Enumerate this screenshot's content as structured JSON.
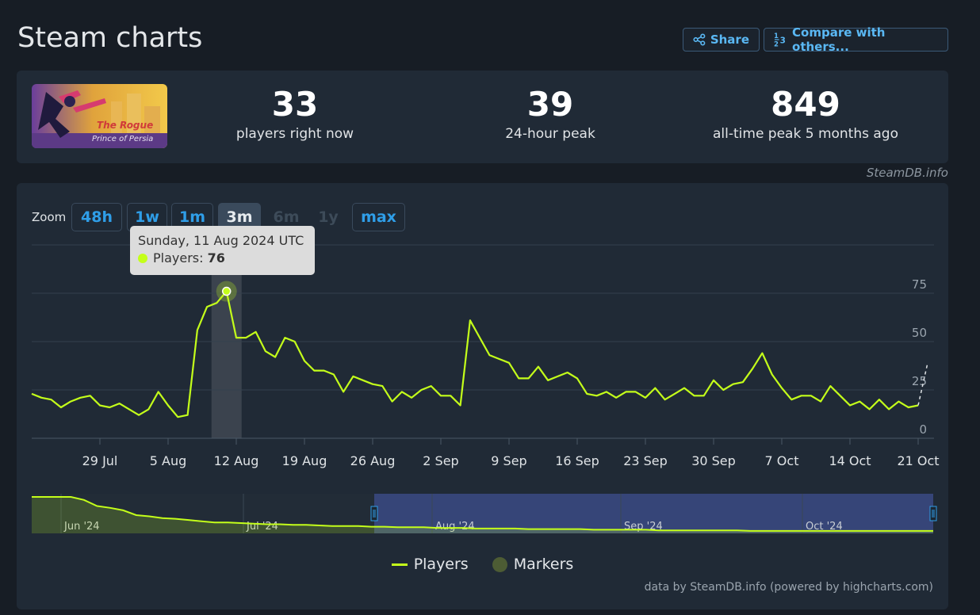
{
  "header": {
    "title": "Steam charts",
    "share_label": "Share",
    "compare_label": "Compare with others..."
  },
  "game": {
    "image_text_line1": "The Rogue",
    "image_text_line2": "Prince of Persia"
  },
  "stats": [
    {
      "value": "33",
      "label": "players right now"
    },
    {
      "value": "39",
      "label": "24-hour peak"
    },
    {
      "value": "849",
      "label": "all-time peak 5 months ago"
    }
  ],
  "attribution": "SteamDB.info",
  "zoom": {
    "label": "Zoom",
    "options": [
      "48h",
      "1w",
      "1m",
      "3m",
      "6m",
      "1y",
      "max"
    ],
    "active": "3m",
    "disabled": [
      "6m",
      "1y"
    ]
  },
  "tooltip": {
    "date": "Sunday, 11 Aug 2024 UTC",
    "series_label": "Players:",
    "value": "76"
  },
  "legend": {
    "players": "Players",
    "markers": "Markers"
  },
  "credits": "data by SteamDB.info (powered by highcharts.com)",
  "colors": {
    "series": "#c4ff1a",
    "accent": "#2f9ee8",
    "background": "#171d25",
    "panel": "#202a36"
  },
  "chart_data": {
    "type": "line",
    "title": "",
    "xlabel": "",
    "ylabel": "",
    "ylim": [
      0,
      100
    ],
    "xlim": [
      "2024-07-22",
      "2024-10-21"
    ],
    "yticks": [
      0,
      25,
      50,
      75
    ],
    "xticks": [
      {
        "date": "2024-07-29",
        "label": "29 Jul"
      },
      {
        "date": "2024-08-05",
        "label": "5 Aug"
      },
      {
        "date": "2024-08-12",
        "label": "12 Aug"
      },
      {
        "date": "2024-08-19",
        "label": "19 Aug"
      },
      {
        "date": "2024-08-26",
        "label": "26 Aug"
      },
      {
        "date": "2024-09-02",
        "label": "2 Sep"
      },
      {
        "date": "2024-09-09",
        "label": "9 Sep"
      },
      {
        "date": "2024-09-16",
        "label": "16 Sep"
      },
      {
        "date": "2024-09-23",
        "label": "23 Sep"
      },
      {
        "date": "2024-09-30",
        "label": "30 Sep"
      },
      {
        "date": "2024-10-07",
        "label": "7 Oct"
      },
      {
        "date": "2024-10-14",
        "label": "14 Oct"
      },
      {
        "date": "2024-10-21",
        "label": "21 Oct"
      }
    ],
    "highlight": {
      "date": "2024-08-11",
      "value": 76
    },
    "series": [
      {
        "name": "Players",
        "points": [
          [
            "2024-07-22",
            23
          ],
          [
            "2024-07-23",
            21
          ],
          [
            "2024-07-24",
            20
          ],
          [
            "2024-07-25",
            16
          ],
          [
            "2024-07-26",
            19
          ],
          [
            "2024-07-27",
            21
          ],
          [
            "2024-07-28",
            22
          ],
          [
            "2024-07-29",
            17
          ],
          [
            "2024-07-30",
            16
          ],
          [
            "2024-07-31",
            18
          ],
          [
            "2024-08-01",
            15
          ],
          [
            "2024-08-02",
            12
          ],
          [
            "2024-08-03",
            15
          ],
          [
            "2024-08-04",
            24
          ],
          [
            "2024-08-05",
            17
          ],
          [
            "2024-08-06",
            11
          ],
          [
            "2024-08-07",
            12
          ],
          [
            "2024-08-08",
            56
          ],
          [
            "2024-08-09",
            68
          ],
          [
            "2024-08-10",
            70
          ],
          [
            "2024-08-11",
            76
          ],
          [
            "2024-08-12",
            52
          ],
          [
            "2024-08-13",
            52
          ],
          [
            "2024-08-14",
            55
          ],
          [
            "2024-08-15",
            45
          ],
          [
            "2024-08-16",
            42
          ],
          [
            "2024-08-17",
            52
          ],
          [
            "2024-08-18",
            50
          ],
          [
            "2024-08-19",
            40
          ],
          [
            "2024-08-20",
            35
          ],
          [
            "2024-08-21",
            35
          ],
          [
            "2024-08-22",
            33
          ],
          [
            "2024-08-23",
            24
          ],
          [
            "2024-08-24",
            32
          ],
          [
            "2024-08-25",
            30
          ],
          [
            "2024-08-26",
            28
          ],
          [
            "2024-08-27",
            27
          ],
          [
            "2024-08-28",
            19
          ],
          [
            "2024-08-29",
            24
          ],
          [
            "2024-08-30",
            21
          ],
          [
            "2024-08-31",
            25
          ],
          [
            "2024-09-01",
            27
          ],
          [
            "2024-09-02",
            22
          ],
          [
            "2024-09-03",
            22
          ],
          [
            "2024-09-04",
            17
          ],
          [
            "2024-09-05",
            61
          ],
          [
            "2024-09-06",
            52
          ],
          [
            "2024-09-07",
            43
          ],
          [
            "2024-09-08",
            41
          ],
          [
            "2024-09-09",
            39
          ],
          [
            "2024-09-10",
            31
          ],
          [
            "2024-09-11",
            31
          ],
          [
            "2024-09-12",
            37
          ],
          [
            "2024-09-13",
            30
          ],
          [
            "2024-09-14",
            32
          ],
          [
            "2024-09-15",
            34
          ],
          [
            "2024-09-16",
            31
          ],
          [
            "2024-09-17",
            23
          ],
          [
            "2024-09-18",
            22
          ],
          [
            "2024-09-19",
            24
          ],
          [
            "2024-09-20",
            21
          ],
          [
            "2024-09-21",
            24
          ],
          [
            "2024-09-22",
            24
          ],
          [
            "2024-09-23",
            21
          ],
          [
            "2024-09-24",
            26
          ],
          [
            "2024-09-25",
            20
          ],
          [
            "2024-09-26",
            23
          ],
          [
            "2024-09-27",
            26
          ],
          [
            "2024-09-28",
            22
          ],
          [
            "2024-09-29",
            22
          ],
          [
            "2024-09-30",
            30
          ],
          [
            "2024-10-01",
            25
          ],
          [
            "2024-10-02",
            28
          ],
          [
            "2024-10-03",
            29
          ],
          [
            "2024-10-04",
            36
          ],
          [
            "2024-10-05",
            44
          ],
          [
            "2024-10-06",
            33
          ],
          [
            "2024-10-07",
            26
          ],
          [
            "2024-10-08",
            20
          ],
          [
            "2024-10-09",
            22
          ],
          [
            "2024-10-10",
            22
          ],
          [
            "2024-10-11",
            19
          ],
          [
            "2024-10-12",
            27
          ],
          [
            "2024-10-13",
            22
          ],
          [
            "2024-10-14",
            17
          ],
          [
            "2024-10-15",
            19
          ],
          [
            "2024-10-16",
            15
          ],
          [
            "2024-10-17",
            20
          ],
          [
            "2024-10-18",
            15
          ],
          [
            "2024-10-19",
            19
          ],
          [
            "2024-10-20",
            16
          ],
          [
            "2024-10-21",
            17
          ]
        ]
      }
    ],
    "in_progress_segment": [
      [
        "2024-10-21",
        17
      ],
      [
        "2024-10-21",
        39
      ]
    ],
    "navigator": {
      "labels": [
        "Jun '24",
        "Jul '24",
        "Aug '24",
        "Sep '24",
        "Oct '24"
      ],
      "overview": [
        849,
        120,
        75,
        60,
        55,
        45,
        42,
        38,
        30,
        28,
        25,
        24,
        22,
        20,
        18,
        18,
        17,
        16,
        15,
        15,
        14,
        14,
        13,
        12,
        12,
        12,
        11,
        11,
        10,
        10,
        10,
        9,
        9,
        9,
        8,
        8,
        8,
        8,
        7,
        7,
        7,
        7,
        7,
        6,
        6,
        6,
        6,
        6,
        5,
        5,
        5,
        5,
        5,
        5,
        5,
        4,
        4,
        4,
        4,
        4,
        4,
        4,
        4,
        4,
        4,
        4,
        4,
        4,
        4,
        4
      ]
    }
  }
}
